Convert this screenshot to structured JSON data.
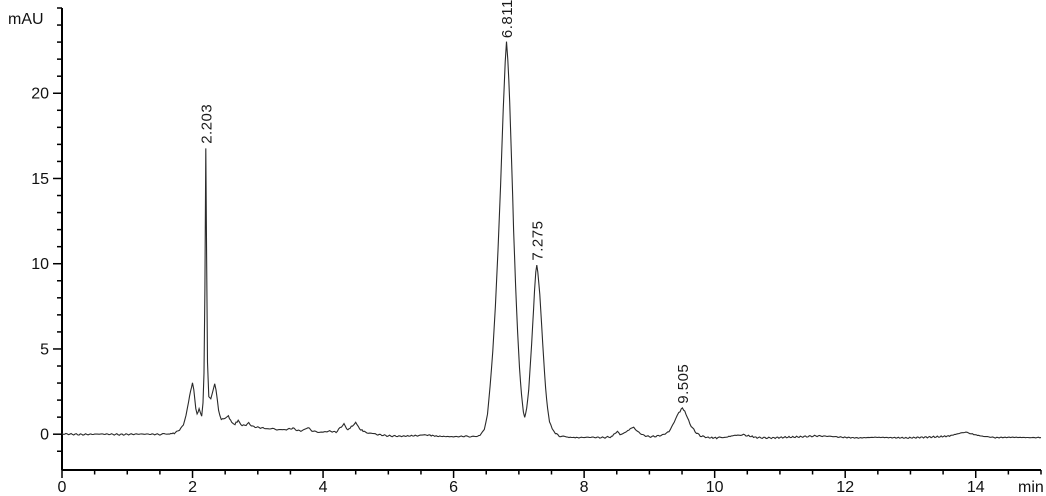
{
  "chart_data": {
    "type": "line",
    "title": "",
    "xlabel": "min",
    "ylabel": "mAU",
    "x_range": [
      0,
      15
    ],
    "y_range": [
      -2.1,
      25.0
    ],
    "grid": false,
    "legend": null,
    "background_color": "#ffffff",
    "axis_color": "#000000",
    "line_color": "#2a2a2a",
    "noise_amplitude": 0.045,
    "x_major_ticks": {
      "values": [
        0,
        2,
        4,
        6,
        8,
        10,
        12,
        14
      ],
      "labels": [
        "0",
        "2",
        "4",
        "6",
        "8",
        "10",
        "12",
        "14"
      ]
    },
    "x_minor_step": 0.5,
    "y_major_ticks": {
      "values": [
        0,
        5,
        10,
        15,
        20
      ],
      "labels": [
        "0",
        "5",
        "10",
        "15",
        "20"
      ]
    },
    "y_minor_step": 1,
    "peaks": [
      {
        "label": "2.203",
        "retention_time": 2.203,
        "height_mAU": 16.8
      },
      {
        "label": "6.811",
        "retention_time": 6.811,
        "height_mAU": 23.0
      },
      {
        "label": "7.275",
        "retention_time": 7.275,
        "height_mAU": 9.95
      },
      {
        "label": "9.505",
        "retention_time": 9.505,
        "height_mAU": 1.55
      }
    ],
    "trace": [
      [
        0.0,
        0.02
      ],
      [
        0.3,
        -0.02
      ],
      [
        0.6,
        0.01
      ],
      [
        0.9,
        -0.02
      ],
      [
        1.2,
        0.01
      ],
      [
        1.5,
        -0.01
      ],
      [
        1.65,
        0.02
      ],
      [
        1.72,
        0.06
      ],
      [
        1.8,
        0.25
      ],
      [
        1.86,
        0.55
      ],
      [
        1.9,
        1.1
      ],
      [
        1.94,
        1.9
      ],
      [
        1.97,
        2.55
      ],
      [
        2.0,
        3.0
      ],
      [
        2.02,
        2.6
      ],
      [
        2.05,
        1.5
      ],
      [
        2.07,
        1.15
      ],
      [
        2.1,
        1.5
      ],
      [
        2.12,
        1.3
      ],
      [
        2.14,
        1.05
      ],
      [
        2.16,
        1.8
      ],
      [
        2.175,
        3.6
      ],
      [
        2.19,
        8.5
      ],
      [
        2.203,
        16.8
      ],
      [
        2.215,
        10.5
      ],
      [
        2.23,
        4.2
      ],
      [
        2.25,
        2.2
      ],
      [
        2.28,
        2.1
      ],
      [
        2.31,
        2.5
      ],
      [
        2.34,
        3.0
      ],
      [
        2.36,
        2.6
      ],
      [
        2.4,
        1.4
      ],
      [
        2.44,
        0.85
      ],
      [
        2.5,
        0.95
      ],
      [
        2.55,
        1.05
      ],
      [
        2.6,
        0.7
      ],
      [
        2.65,
        0.6
      ],
      [
        2.7,
        0.8
      ],
      [
        2.76,
        0.5
      ],
      [
        2.82,
        0.55
      ],
      [
        2.86,
        0.65
      ],
      [
        2.92,
        0.45
      ],
      [
        3.0,
        0.4
      ],
      [
        3.1,
        0.35
      ],
      [
        3.25,
        0.3
      ],
      [
        3.4,
        0.25
      ],
      [
        3.54,
        0.35
      ],
      [
        3.62,
        0.2
      ],
      [
        3.7,
        0.22
      ],
      [
        3.77,
        0.38
      ],
      [
        3.85,
        0.15
      ],
      [
        4.0,
        0.12
      ],
      [
        4.1,
        0.18
      ],
      [
        4.2,
        0.12
      ],
      [
        4.28,
        0.45
      ],
      [
        4.32,
        0.58
      ],
      [
        4.38,
        0.25
      ],
      [
        4.45,
        0.5
      ],
      [
        4.5,
        0.72
      ],
      [
        4.56,
        0.3
      ],
      [
        4.65,
        0.12
      ],
      [
        4.8,
        0.0
      ],
      [
        5.0,
        -0.1
      ],
      [
        5.2,
        -0.12
      ],
      [
        5.45,
        -0.08
      ],
      [
        5.6,
        -0.04
      ],
      [
        5.75,
        -0.12
      ],
      [
        6.0,
        -0.15
      ],
      [
        6.2,
        -0.12
      ],
      [
        6.35,
        -0.15
      ],
      [
        6.42,
        -0.02
      ],
      [
        6.47,
        0.3
      ],
      [
        6.52,
        1.2
      ],
      [
        6.56,
        2.8
      ],
      [
        6.6,
        4.9
      ],
      [
        6.64,
        7.5
      ],
      [
        6.68,
        10.8
      ],
      [
        6.72,
        14.6
      ],
      [
        6.76,
        19.0
      ],
      [
        6.79,
        21.8
      ],
      [
        6.811,
        23.0
      ],
      [
        6.83,
        22.0
      ],
      [
        6.86,
        19.5
      ],
      [
        6.89,
        15.8
      ],
      [
        6.92,
        12.0
      ],
      [
        6.95,
        8.7
      ],
      [
        6.98,
        6.0
      ],
      [
        7.01,
        3.9
      ],
      [
        7.04,
        2.3
      ],
      [
        7.07,
        1.3
      ],
      [
        7.09,
        1.0
      ],
      [
        7.12,
        1.5
      ],
      [
        7.15,
        2.6
      ],
      [
        7.18,
        4.3
      ],
      [
        7.21,
        6.3
      ],
      [
        7.24,
        8.4
      ],
      [
        7.26,
        9.5
      ],
      [
        7.275,
        9.95
      ],
      [
        7.29,
        9.5
      ],
      [
        7.32,
        8.2
      ],
      [
        7.35,
        6.3
      ],
      [
        7.38,
        4.4
      ],
      [
        7.41,
        2.7
      ],
      [
        7.44,
        1.5
      ],
      [
        7.47,
        0.75
      ],
      [
        7.51,
        0.3
      ],
      [
        7.56,
        0.05
      ],
      [
        7.62,
        -0.1
      ],
      [
        7.75,
        -0.18
      ],
      [
        7.9,
        -0.2
      ],
      [
        8.1,
        -0.18
      ],
      [
        8.3,
        -0.2
      ],
      [
        8.42,
        -0.15
      ],
      [
        8.47,
        0.05
      ],
      [
        8.51,
        0.15
      ],
      [
        8.55,
        0.0
      ],
      [
        8.6,
        0.05
      ],
      [
        8.65,
        0.15
      ],
      [
        8.72,
        0.35
      ],
      [
        8.76,
        0.4
      ],
      [
        8.82,
        0.15
      ],
      [
        8.9,
        -0.05
      ],
      [
        9.0,
        -0.15
      ],
      [
        9.1,
        -0.12
      ],
      [
        9.2,
        -0.05
      ],
      [
        9.3,
        0.15
      ],
      [
        9.38,
        0.7
      ],
      [
        9.45,
        1.25
      ],
      [
        9.505,
        1.55
      ],
      [
        9.56,
        1.2
      ],
      [
        9.62,
        0.6
      ],
      [
        9.7,
        0.15
      ],
      [
        9.78,
        -0.1
      ],
      [
        9.9,
        -0.2
      ],
      [
        10.05,
        -0.22
      ],
      [
        10.2,
        -0.15
      ],
      [
        10.33,
        -0.05
      ],
      [
        10.42,
        -0.02
      ],
      [
        10.52,
        -0.1
      ],
      [
        10.65,
        -0.2
      ],
      [
        10.85,
        -0.22
      ],
      [
        11.1,
        -0.18
      ],
      [
        11.35,
        -0.15
      ],
      [
        11.55,
        -0.1
      ],
      [
        11.75,
        -0.12
      ],
      [
        11.95,
        -0.18
      ],
      [
        12.2,
        -0.22
      ],
      [
        12.45,
        -0.18
      ],
      [
        12.7,
        -0.2
      ],
      [
        12.95,
        -0.22
      ],
      [
        13.2,
        -0.18
      ],
      [
        13.45,
        -0.15
      ],
      [
        13.6,
        -0.1
      ],
      [
        13.75,
        0.05
      ],
      [
        13.85,
        0.12
      ],
      [
        13.95,
        0.0
      ],
      [
        14.1,
        -0.12
      ],
      [
        14.3,
        -0.2
      ],
      [
        14.55,
        -0.18
      ],
      [
        14.8,
        -0.2
      ],
      [
        15.0,
        -0.2
      ]
    ]
  }
}
